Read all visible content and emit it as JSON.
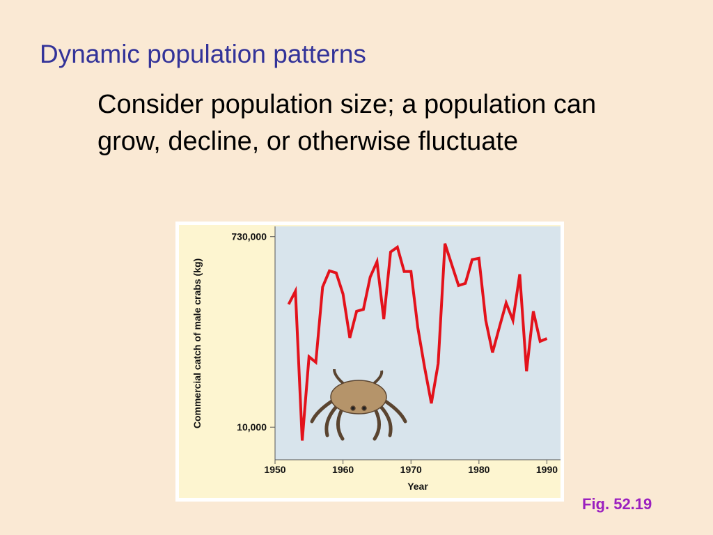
{
  "slide": {
    "title": "Dynamic population patterns",
    "body": [
      "Consider population size; a population can",
      "grow, decline, or otherwise fluctuate"
    ],
    "figure_label": "Fig. 52.19"
  },
  "chart_data": {
    "type": "line",
    "x_label": "Year",
    "y_label": "Commercial catch of male crabs (kg)",
    "x": [
      1952,
      1953,
      1954,
      1955,
      1956,
      1957,
      1958,
      1959,
      1960,
      1961,
      1962,
      1963,
      1964,
      1965,
      1966,
      1967,
      1968,
      1969,
      1970,
      1971,
      1972,
      1973,
      1974,
      1975,
      1976,
      1977,
      1978,
      1979,
      1980,
      1981,
      1982,
      1983,
      1984,
      1985,
      1986,
      1987,
      1988,
      1989,
      1990
    ],
    "series": [
      {
        "name": "Catch",
        "color": "#e3121b",
        "values": [
          159000,
          214000,
          7400,
          48900,
          43100,
          235000,
          338000,
          323000,
          201000,
          74800,
          136000,
          142000,
          294000,
          415000,
          114000,
          517000,
          577000,
          333000,
          333000,
          94600,
          38600,
          17100,
          41800,
          624000,
          389000,
          243000,
          255000,
          435000,
          449000,
          111000,
          53700,
          94600,
          164000,
          111000,
          313000,
          35200,
          136000,
          69100,
          73600
        ]
      }
    ],
    "xlim": [
      1950,
      1992
    ],
    "xticks": [
      1950,
      1960,
      1970,
      1980,
      1990
    ],
    "ylim": [
      4800,
      920000
    ],
    "yticks": [
      {
        "value": 10000,
        "label": "10,000"
      },
      {
        "value": 730000,
        "label": "730,000"
      }
    ],
    "log_y": true
  }
}
